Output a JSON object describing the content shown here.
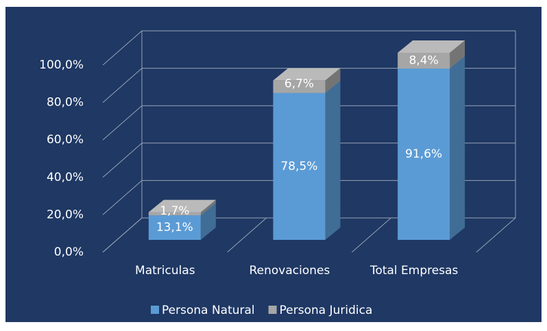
{
  "chart_data": {
    "type": "bar3d_stacked",
    "categories": [
      "Matriculas",
      "Renovaciones",
      "Total Empresas"
    ],
    "series": [
      {
        "name": "Persona Natural",
        "color": "#5b9bd5",
        "values": [
          13.1,
          78.5,
          91.6
        ],
        "value_labels": [
          "13,1%",
          "78,5%",
          "91,6%"
        ]
      },
      {
        "name": "Persona Juridica",
        "color": "#a6a6a6",
        "values": [
          1.7,
          6.7,
          8.4
        ],
        "value_labels": [
          "1,7%",
          "6,7%",
          "8,4%"
        ]
      }
    ],
    "ylim": [
      0,
      100
    ],
    "yticks": [
      {
        "value": 0,
        "label": "0,0%"
      },
      {
        "value": 20,
        "label": "20,0%"
      },
      {
        "value": 40,
        "label": "40,0%"
      },
      {
        "value": 60,
        "label": "60,0%"
      },
      {
        "value": 80,
        "label": "80,0%"
      },
      {
        "value": 100,
        "label": "100,0%"
      }
    ],
    "grid": true,
    "legend": "bottom"
  }
}
